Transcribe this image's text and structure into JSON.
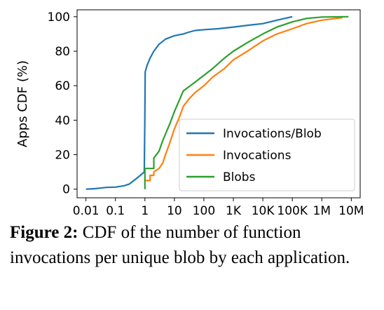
{
  "chart_data": {
    "type": "line",
    "title": "",
    "xlabel": "",
    "ylabel": "Apps CDF (%)",
    "xscale": "log",
    "xlim": [
      0.005,
      20000000
    ],
    "ylim": [
      -5,
      104
    ],
    "grid": false,
    "legend_position": "lower-right",
    "x_ticks": [
      {
        "value": 0.01,
        "label": "0.01"
      },
      {
        "value": 0.1,
        "label": "0.1"
      },
      {
        "value": 1,
        "label": "1"
      },
      {
        "value": 10,
        "label": "10"
      },
      {
        "value": 100,
        "label": "100"
      },
      {
        "value": 1000,
        "label": "1K"
      },
      {
        "value": 10000,
        "label": "10K"
      },
      {
        "value": 100000,
        "label": "100K"
      },
      {
        "value": 1000000,
        "label": "1M"
      },
      {
        "value": 10000000,
        "label": "10M"
      }
    ],
    "y_ticks": [
      {
        "value": 0,
        "label": "0"
      },
      {
        "value": 20,
        "label": "20"
      },
      {
        "value": 40,
        "label": "40"
      },
      {
        "value": 60,
        "label": "60"
      },
      {
        "value": 80,
        "label": "80"
      },
      {
        "value": 100,
        "label": "100"
      }
    ],
    "series": [
      {
        "name": "Invocations/Blob",
        "color": "#1f77b4",
        "points": [
          [
            0.01,
            0
          ],
          [
            0.02,
            0.3
          ],
          [
            0.03,
            0.6
          ],
          [
            0.05,
            1
          ],
          [
            0.1,
            1.2
          ],
          [
            0.2,
            2
          ],
          [
            0.3,
            3
          ],
          [
            0.5,
            6
          ],
          [
            0.7,
            8
          ],
          [
            0.95,
            10
          ],
          [
            1,
            45
          ],
          [
            1.02,
            68
          ],
          [
            1.2,
            72
          ],
          [
            1.5,
            76
          ],
          [
            2,
            80
          ],
          [
            3,
            84
          ],
          [
            5,
            87
          ],
          [
            10,
            89
          ],
          [
            20,
            90
          ],
          [
            30,
            91
          ],
          [
            50,
            92
          ],
          [
            100,
            92.5
          ],
          [
            300,
            93
          ],
          [
            1000,
            94
          ],
          [
            3000,
            95
          ],
          [
            10000,
            96
          ],
          [
            30000,
            98
          ],
          [
            100000,
            100
          ]
        ]
      },
      {
        "name": "Invocations",
        "color": "#ff7f0e",
        "points": [
          [
            1,
            5
          ],
          [
            1.5,
            5
          ],
          [
            1.5,
            8
          ],
          [
            2,
            8
          ],
          [
            2,
            10
          ],
          [
            3,
            12
          ],
          [
            4,
            15
          ],
          [
            5,
            20
          ],
          [
            7,
            27
          ],
          [
            10,
            35
          ],
          [
            15,
            42
          ],
          [
            20,
            48
          ],
          [
            30,
            52
          ],
          [
            50,
            56
          ],
          [
            100,
            60
          ],
          [
            200,
            65
          ],
          [
            500,
            70
          ],
          [
            1000,
            75
          ],
          [
            3000,
            80
          ],
          [
            10000,
            86
          ],
          [
            30000,
            90
          ],
          [
            100000,
            93
          ],
          [
            300000,
            96
          ],
          [
            1000000,
            98
          ],
          [
            3000000,
            99
          ],
          [
            5000000,
            99.5
          ]
        ]
      },
      {
        "name": "Blobs",
        "color": "#2ca02c",
        "points": [
          [
            1,
            0
          ],
          [
            1,
            12
          ],
          [
            2,
            12
          ],
          [
            2,
            18
          ],
          [
            3,
            22
          ],
          [
            4,
            28
          ],
          [
            5,
            32
          ],
          [
            7,
            38
          ],
          [
            10,
            45
          ],
          [
            15,
            52
          ],
          [
            20,
            57
          ],
          [
            50,
            62
          ],
          [
            100,
            66
          ],
          [
            200,
            70
          ],
          [
            500,
            76
          ],
          [
            1000,
            80
          ],
          [
            3000,
            85
          ],
          [
            10000,
            90
          ],
          [
            30000,
            94
          ],
          [
            100000,
            97
          ],
          [
            300000,
            99
          ],
          [
            1000000,
            99.8
          ],
          [
            8000000,
            100
          ]
        ]
      }
    ]
  },
  "caption": {
    "label": "Figure 2:",
    "text": "CDF of the number of function invocations per unique blob by each application."
  }
}
